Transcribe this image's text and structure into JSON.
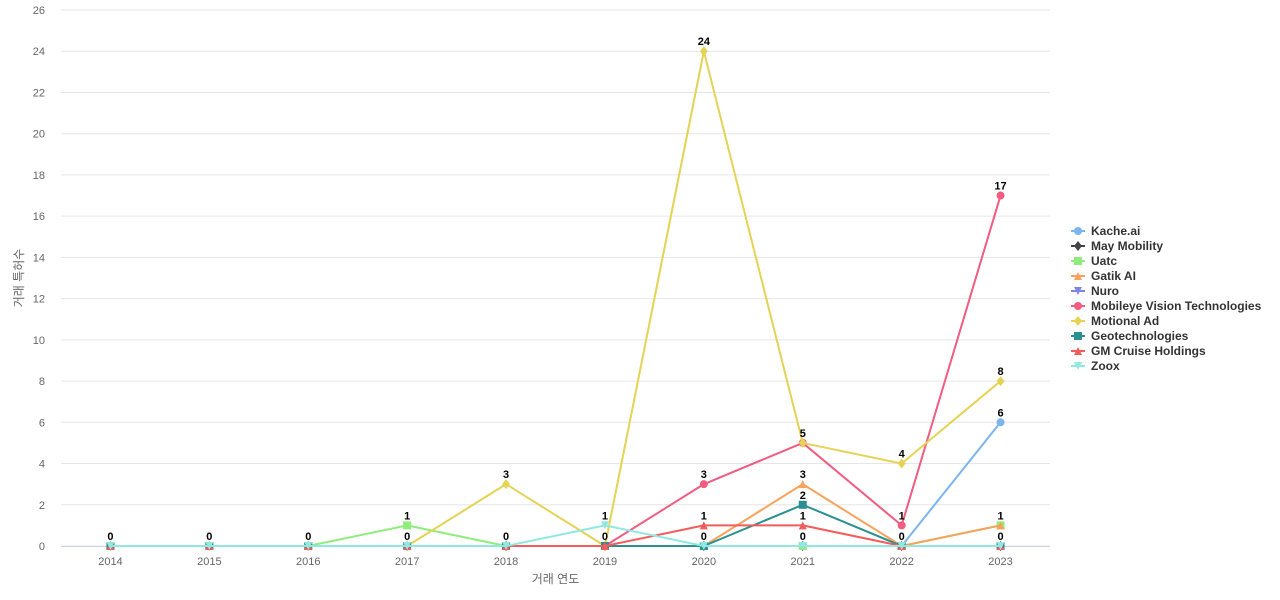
{
  "chart_data": {
    "type": "line",
    "title": "",
    "xlabel": "거래 연도",
    "ylabel": "거래 특허수",
    "ylim": [
      0,
      26
    ],
    "y_ticks": [
      0,
      2,
      4,
      6,
      8,
      10,
      12,
      14,
      16,
      18,
      20,
      22,
      24,
      26
    ],
    "grid": true,
    "legend_position": "right",
    "x": [
      "2014",
      "2015",
      "2016",
      "2017",
      "2018",
      "2019",
      "2020",
      "2021",
      "2022",
      "2023"
    ],
    "series": [
      {
        "name": "Kache.ai",
        "color": "#7cb5ec",
        "marker": "circle",
        "values": [
          0,
          0,
          0,
          0,
          0,
          0,
          0,
          0,
          0,
          6
        ]
      },
      {
        "name": "May Mobility",
        "color": "#434348",
        "marker": "diamond",
        "values": [
          0,
          0,
          0,
          0,
          0,
          0,
          0,
          0,
          0,
          0
        ]
      },
      {
        "name": "Uatc",
        "color": "#90ed7d",
        "marker": "square",
        "values": [
          0,
          0,
          0,
          1,
          0,
          0,
          0,
          0,
          0,
          1
        ]
      },
      {
        "name": "Gatik AI",
        "color": "#f7a35c",
        "marker": "triangle",
        "values": [
          0,
          0,
          0,
          0,
          0,
          0,
          0,
          3,
          0,
          1
        ]
      },
      {
        "name": "Nuro",
        "color": "#8085e9",
        "marker": "triangle-down",
        "values": [
          0,
          0,
          0,
          0,
          0,
          0,
          0,
          0,
          0,
          0
        ]
      },
      {
        "name": "Mobileye Vision Technologies",
        "color": "#f15c80",
        "marker": "circle",
        "values": [
          0,
          0,
          0,
          0,
          0,
          0,
          3,
          5,
          1,
          17
        ]
      },
      {
        "name": "Motional Ad",
        "color": "#e4d354",
        "marker": "diamond",
        "values": [
          0,
          0,
          0,
          0,
          3,
          0,
          24,
          5,
          4,
          8
        ]
      },
      {
        "name": "Geotechnologies",
        "color": "#2b908f",
        "marker": "square",
        "values": [
          0,
          0,
          0,
          0,
          0,
          0,
          0,
          2,
          0,
          0
        ]
      },
      {
        "name": "GM Cruise Holdings",
        "color": "#f45b5b",
        "marker": "triangle",
        "values": [
          0,
          0,
          0,
          0,
          0,
          0,
          1,
          1,
          0,
          0
        ]
      },
      {
        "name": "Zoox",
        "color": "#91e8e1",
        "marker": "triangle-down",
        "values": [
          0,
          0,
          0,
          0,
          0,
          1,
          0,
          0,
          0,
          0
        ]
      }
    ],
    "data_labels": [
      {
        "x": "2014",
        "text": "0",
        "value": 0
      },
      {
        "x": "2015",
        "text": "0",
        "value": 0
      },
      {
        "x": "2016",
        "text": "0",
        "value": 0
      },
      {
        "x": "2017",
        "text": "1",
        "value": 1
      },
      {
        "x": "2017",
        "text": "0",
        "value": 0
      },
      {
        "x": "2018",
        "text": "3",
        "value": 3
      },
      {
        "x": "2018",
        "text": "0",
        "value": 0
      },
      {
        "x": "2019",
        "text": "1",
        "value": 1
      },
      {
        "x": "2019",
        "text": "0",
        "value": 0
      },
      {
        "x": "2020",
        "text": "24",
        "value": 24
      },
      {
        "x": "2020",
        "text": "3",
        "value": 3
      },
      {
        "x": "2020",
        "text": "1",
        "value": 1
      },
      {
        "x": "2020",
        "text": "0",
        "value": 0
      },
      {
        "x": "2021",
        "text": "5",
        "value": 5
      },
      {
        "x": "2021",
        "text": "3",
        "value": 3
      },
      {
        "x": "2021",
        "text": "2",
        "value": 2
      },
      {
        "x": "2021",
        "text": "1",
        "value": 1
      },
      {
        "x": "2021",
        "text": "0",
        "value": 0
      },
      {
        "x": "2022",
        "text": "4",
        "value": 4
      },
      {
        "x": "2022",
        "text": "1",
        "value": 1
      },
      {
        "x": "2022",
        "text": "0",
        "value": 0
      },
      {
        "x": "2023",
        "text": "17",
        "value": 17
      },
      {
        "x": "2023",
        "text": "8",
        "value": 8
      },
      {
        "x": "2023",
        "text": "6",
        "value": 6
      },
      {
        "x": "2023",
        "text": "1",
        "value": 1
      },
      {
        "x": "2023",
        "text": "0",
        "value": 0
      }
    ]
  }
}
